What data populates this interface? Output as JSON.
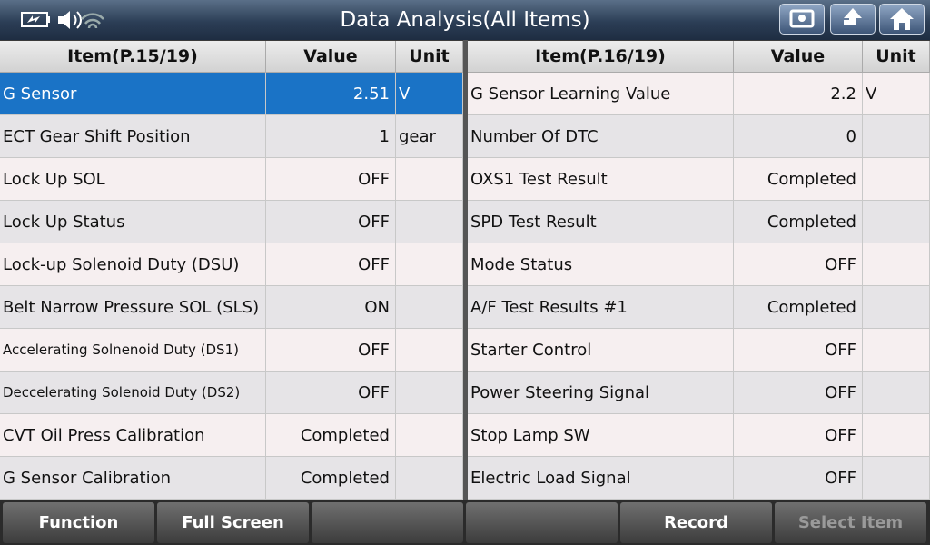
{
  "header": {
    "title": "Data Analysis(All Items)"
  },
  "tables": [
    {
      "columns": [
        "Item(P.15/19)",
        "Value",
        "Unit"
      ],
      "rows": [
        {
          "item": "G Sensor",
          "value": "2.51",
          "unit": "V"
        },
        {
          "item": "ECT Gear Shift Position",
          "value": "1",
          "unit": "gear"
        },
        {
          "item": "Lock Up SOL",
          "value": "OFF"
        },
        {
          "item": "Lock Up Status",
          "value": "OFF"
        },
        {
          "item": "Lock-up Solenoid Duty (DSU)",
          "value": "OFF"
        },
        {
          "item": "Belt Narrow Pressure SOL (SLS)",
          "value": "ON"
        },
        {
          "item": "Accelerating Solnenoid Duty (DS1)",
          "value": "OFF"
        },
        {
          "item": "Deccelerating Solenoid Duty (DS2)",
          "value": "OFF"
        },
        {
          "item": "CVT Oil Press Calibration",
          "value": "Completed"
        },
        {
          "item": "G Sensor Calibration",
          "value": "Completed"
        }
      ]
    },
    {
      "columns": [
        "Item(P.16/19)",
        "Value",
        "Unit"
      ],
      "rows": [
        {
          "item": "G Sensor Learning Value",
          "value": "2.2",
          "unit": "V"
        },
        {
          "item": "Number Of DTC",
          "value": "0"
        },
        {
          "item": "OXS1 Test Result",
          "value": "Completed"
        },
        {
          "item": "SPD Test Result",
          "value": "Completed"
        },
        {
          "item": "Mode Status",
          "value": "OFF"
        },
        {
          "item": "A/F Test Results #1",
          "value": "Completed"
        },
        {
          "item": "Starter Control",
          "value": "OFF"
        },
        {
          "item": "Power Steering Signal",
          "value": "OFF"
        },
        {
          "item": "Stop Lamp SW",
          "value": "OFF"
        },
        {
          "item": "Electric Load Signal",
          "value": "OFF"
        }
      ]
    }
  ],
  "buttons": [
    "Function",
    "Full Screen",
    "Record",
    "Select Item"
  ]
}
